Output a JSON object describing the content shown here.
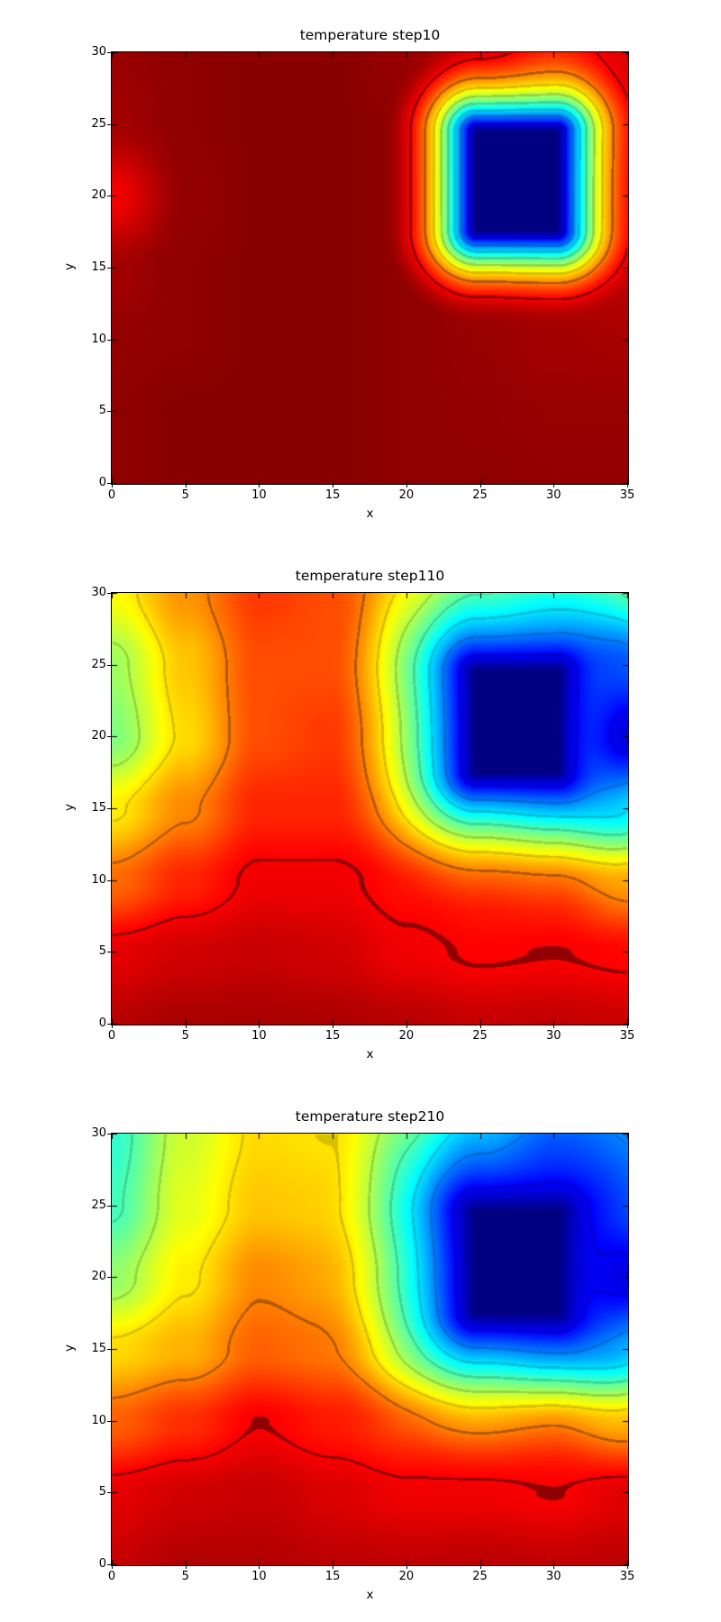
{
  "page": {
    "background": "#ffffff",
    "text_color": "#000000"
  },
  "colors": {
    "cold_block": "#000080",
    "hot_background": "#8b0000",
    "colormap": "jet",
    "spine": "#000000"
  },
  "chart_data": [
    {
      "type": "heatmap",
      "title": "temperature step10",
      "xlabel": "x",
      "ylabel": "y",
      "xlim": [
        0,
        35
      ],
      "ylim": [
        0,
        30
      ],
      "xticks": [
        0,
        5,
        10,
        15,
        20,
        25,
        30,
        35
      ],
      "yticks": [
        0,
        5,
        10,
        15,
        20,
        25,
        30
      ],
      "grid_x": [
        0,
        5,
        10,
        15,
        20,
        25,
        30,
        35
      ],
      "grid_y": [
        30,
        25,
        20,
        15,
        10,
        5,
        0
      ],
      "values": [
        [
          0.975,
          0.985,
          0.99,
          0.99,
          0.975,
          0.93,
          0.86,
          0.9
        ],
        [
          0.965,
          0.985,
          0.99,
          0.99,
          0.985,
          0.955,
          0.93,
          0.92
        ],
        [
          0.885,
          0.98,
          0.99,
          0.99,
          0.985,
          0.96,
          0.94,
          0.93
        ],
        [
          0.965,
          0.985,
          0.99,
          0.99,
          0.985,
          0.965,
          0.945,
          0.94
        ],
        [
          0.98,
          0.985,
          0.99,
          0.99,
          0.985,
          0.975,
          0.965,
          0.96
        ],
        [
          0.985,
          0.99,
          0.99,
          0.99,
          0.985,
          0.98,
          0.975,
          0.975
        ],
        [
          0.985,
          0.99,
          0.99,
          0.99,
          0.985,
          0.985,
          0.98,
          0.98
        ]
      ],
      "cold_block": {
        "x0": 24.7,
        "x1": 30.2,
        "y0": 17.6,
        "y1": 24.5,
        "value": 0,
        "influence_radius": 6.5,
        "profile_exponent": 0.6
      },
      "contour_levels": [
        0.12,
        0.25,
        0.35,
        0.45,
        0.55,
        0.65,
        0.75,
        0.88
      ]
    },
    {
      "type": "heatmap",
      "title": "temperature step110",
      "xlabel": "x",
      "ylabel": "y",
      "xlim": [
        0,
        35
      ],
      "ylim": [
        0,
        30
      ],
      "xticks": [
        0,
        5,
        10,
        15,
        20,
        25,
        30,
        35
      ],
      "yticks": [
        0,
        5,
        10,
        15,
        20,
        25,
        30
      ],
      "grid_x": [
        0,
        5,
        10,
        15,
        20,
        25,
        30,
        35
      ],
      "grid_y": [
        30,
        25,
        20,
        15,
        10,
        5,
        0
      ],
      "values": [
        [
          0.62,
          0.73,
          0.82,
          0.8,
          0.68,
          0.58,
          0.52,
          0.5
        ],
        [
          0.53,
          0.68,
          0.8,
          0.8,
          0.7,
          0.66,
          0.62,
          0.3
        ],
        [
          0.5,
          0.66,
          0.8,
          0.82,
          0.74,
          0.7,
          0.7,
          0.13
        ],
        [
          0.64,
          0.74,
          0.84,
          0.84,
          0.8,
          0.78,
          0.7,
          0.45
        ],
        [
          0.77,
          0.84,
          0.89,
          0.89,
          0.86,
          0.84,
          0.82,
          0.72
        ],
        [
          0.9,
          0.92,
          0.93,
          0.92,
          0.89,
          0.875,
          0.88,
          0.87
        ],
        [
          0.945,
          0.96,
          0.96,
          0.955,
          0.945,
          0.93,
          0.935,
          0.925
        ]
      ],
      "cold_block": {
        "x0": 24.7,
        "x1": 30.2,
        "y0": 17.6,
        "y1": 24.5,
        "value": 0,
        "influence_radius": 10,
        "profile_exponent": 0.6
      },
      "contour_levels": [
        0.12,
        0.25,
        0.35,
        0.45,
        0.55,
        0.65,
        0.75,
        0.88
      ]
    },
    {
      "type": "heatmap",
      "title": "temperature step210",
      "xlabel": "x",
      "ylabel": "y",
      "xlim": [
        0,
        35
      ],
      "ylim": [
        0,
        30
      ],
      "xticks": [
        0,
        5,
        10,
        15,
        20,
        25,
        30,
        35
      ],
      "yticks": [
        0,
        5,
        10,
        15,
        20,
        25,
        30
      ],
      "grid_x": [
        0,
        5,
        10,
        15,
        20,
        25,
        30,
        35
      ],
      "grid_y": [
        30,
        25,
        20,
        15,
        10,
        5,
        0
      ],
      "values": [
        [
          0.42,
          0.58,
          0.66,
          0.65,
          0.55,
          0.42,
          0.3,
          0.3
        ],
        [
          0.44,
          0.6,
          0.68,
          0.67,
          0.58,
          0.48,
          0.42,
          0.3
        ],
        [
          0.52,
          0.64,
          0.74,
          0.71,
          0.63,
          0.58,
          0.5,
          0.15
        ],
        [
          0.66,
          0.7,
          0.78,
          0.76,
          0.7,
          0.68,
          0.6,
          0.42
        ],
        [
          0.78,
          0.83,
          0.88,
          0.85,
          0.81,
          0.79,
          0.82,
          0.72
        ],
        [
          0.9,
          0.92,
          0.93,
          0.91,
          0.89,
          0.89,
          0.88,
          0.905
        ],
        [
          0.93,
          0.95,
          0.95,
          0.94,
          0.935,
          0.94,
          0.935,
          0.94
        ]
      ],
      "cold_block": {
        "x0": 24.7,
        "x1": 30.2,
        "y0": 17.6,
        "y1": 24.5,
        "value": 0,
        "influence_radius": 11,
        "profile_exponent": 0.6
      },
      "contour_levels": [
        0.12,
        0.25,
        0.35,
        0.45,
        0.55,
        0.65,
        0.75,
        0.88
      ]
    }
  ]
}
